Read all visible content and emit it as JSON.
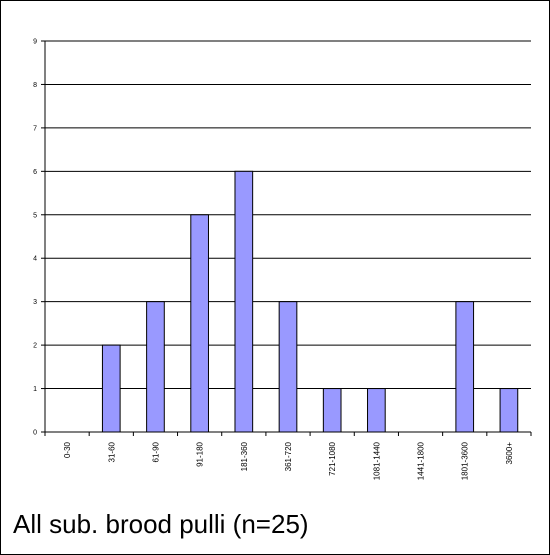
{
  "caption": "All sub. brood pulli (n=25)",
  "chart_data": {
    "type": "bar",
    "categories": [
      "0-30",
      "31-60",
      "61-90",
      "91-180",
      "181-360",
      "361-720",
      "721-1080",
      "1081-1440",
      "1441-1800",
      "1801-3600",
      "3600+"
    ],
    "values": [
      0,
      2,
      3,
      5,
      6,
      3,
      1,
      1,
      0,
      3,
      1
    ],
    "ylim": [
      0,
      9
    ],
    "yticks": [
      0,
      1,
      2,
      3,
      4,
      5,
      6,
      7,
      8,
      9
    ],
    "grid": true,
    "legend": "none",
    "bar_color": "#9999FF",
    "bar_edge_color": "#000000"
  }
}
